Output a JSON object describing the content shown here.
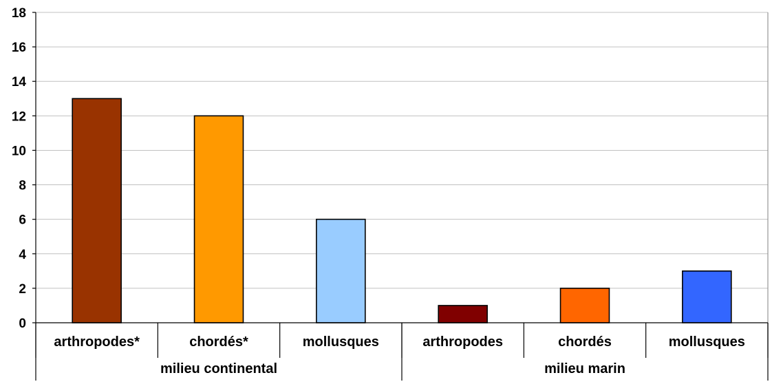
{
  "chart_data": {
    "type": "bar",
    "title": "",
    "xlabel": "",
    "ylabel": "",
    "ylim": [
      0,
      18
    ],
    "yticks": [
      0,
      2,
      4,
      6,
      8,
      10,
      12,
      14,
      16,
      18
    ],
    "grid": true,
    "legend": "none",
    "categories": [
      "arthropodes*",
      "chordés*",
      "mollusques",
      "arthropodes",
      "chordés",
      "mollusques"
    ],
    "values": [
      13,
      12,
      6,
      1,
      2,
      3
    ],
    "bar_colors": [
      "#993300",
      "#ff9900",
      "#99ccff",
      "#800000",
      "#ff6600",
      "#3366ff"
    ],
    "groups": [
      {
        "label": "milieu continental",
        "count": 3
      },
      {
        "label": "milieu marin",
        "count": 3
      }
    ]
  }
}
